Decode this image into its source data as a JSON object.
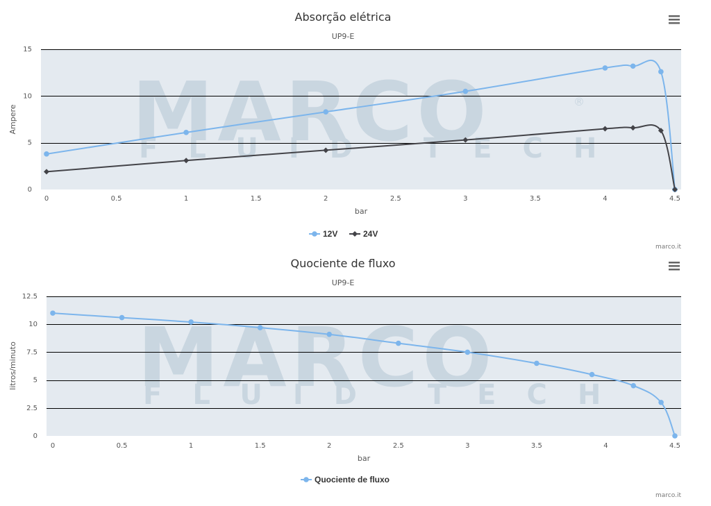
{
  "watermark": {
    "main": "MARCO",
    "sub": "FLUID TECH",
    "mark": "®"
  },
  "colors": {
    "plot_bg": "#e4eaf0",
    "blue": "#7cb5ec",
    "dark": "#434348",
    "grid": "#000000"
  },
  "menu_icon": "hamburger-menu-icon",
  "chart_data": [
    {
      "type": "line",
      "title": "Absorção elétrica",
      "subtitle": "UP9-E",
      "xlabel": "bar",
      "ylabel": "Ampere",
      "xlim": [
        0,
        4.5
      ],
      "ylim": [
        0,
        15
      ],
      "xticks": [
        0,
        0.5,
        1,
        1.5,
        2,
        2.5,
        3,
        3.5,
        4,
        4.5
      ],
      "xtick_labels": [
        "0",
        "0.5",
        "1",
        "1.5",
        "2",
        "2.5",
        "3",
        "3.5",
        "4",
        "4.5"
      ],
      "yticks": [
        0,
        5,
        10,
        15
      ],
      "ytick_labels": [
        "0",
        "5",
        "10",
        "15"
      ],
      "grid": true,
      "legend_position": "bottom-center",
      "credits": "marco.it",
      "series": [
        {
          "name": "12V",
          "color": "#7cb5ec",
          "marker": "circle",
          "x": [
            0,
            1,
            2,
            3,
            4,
            4.2,
            4.4,
            4.5
          ],
          "y": [
            3.8,
            6.1,
            8.3,
            10.5,
            13.0,
            13.2,
            12.6,
            0
          ]
        },
        {
          "name": "24V",
          "color": "#434348",
          "marker": "diamond",
          "x": [
            0,
            1,
            2,
            3,
            4,
            4.2,
            4.4,
            4.5
          ],
          "y": [
            1.9,
            3.1,
            4.2,
            5.3,
            6.5,
            6.6,
            6.3,
            0
          ]
        }
      ]
    },
    {
      "type": "line",
      "title": "Quociente de fluxo",
      "subtitle": "UP9-E",
      "xlabel": "bar",
      "ylabel": "litros/minuto",
      "xlim": [
        0,
        4.5
      ],
      "ylim": [
        0,
        12.5
      ],
      "xticks": [
        0,
        0.5,
        1,
        1.5,
        2,
        2.5,
        3,
        3.5,
        4,
        4.5
      ],
      "xtick_labels": [
        "0",
        "0.5",
        "1",
        "1.5",
        "2",
        "2.5",
        "3",
        "3.5",
        "4",
        "4.5"
      ],
      "yticks": [
        0,
        2.5,
        5,
        7.5,
        10,
        12.5
      ],
      "ytick_labels": [
        "0",
        "2.5",
        "5",
        "7.5",
        "10",
        "12.5"
      ],
      "grid": true,
      "legend_position": "bottom-center",
      "credits": "marco.it",
      "series": [
        {
          "name": "Quociente de fluxo",
          "color": "#7cb5ec",
          "marker": "circle",
          "x": [
            0,
            0.5,
            1,
            1.5,
            2,
            2.5,
            3,
            3.5,
            3.9,
            4.2,
            4.4,
            4.5
          ],
          "y": [
            11.0,
            10.6,
            10.2,
            9.7,
            9.1,
            8.3,
            7.5,
            6.5,
            5.5,
            4.5,
            3.0,
            0
          ]
        }
      ]
    }
  ]
}
